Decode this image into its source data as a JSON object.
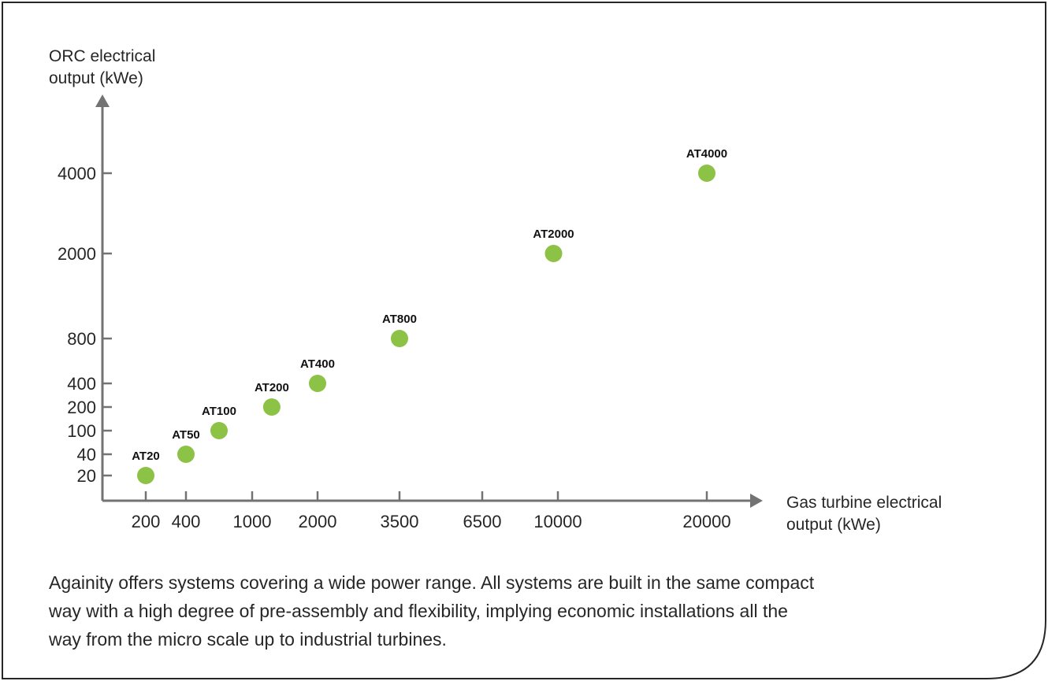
{
  "chart_data": {
    "type": "scatter",
    "ylabel_lines": [
      "ORC electrical",
      "output (kWe)"
    ],
    "xlabel_lines": [
      "Gas turbine electrical",
      "output (kWe)"
    ],
    "x_ticks": [
      200,
      400,
      1000,
      2000,
      3500,
      6500,
      10000,
      20000
    ],
    "y_ticks": [
      20,
      40,
      100,
      200,
      400,
      800,
      2000,
      4000
    ],
    "points": [
      {
        "label": "AT20",
        "x": 200,
        "y": 20
      },
      {
        "label": "AT50",
        "x": 400,
        "y": 40
      },
      {
        "label": "AT100",
        "x": 700,
        "y": 100
      },
      {
        "label": "AT200",
        "x": 1300,
        "y": 200
      },
      {
        "label": "AT400",
        "x": 2000,
        "y": 400
      },
      {
        "label": "AT800",
        "x": 3500,
        "y": 800
      },
      {
        "label": "AT2000",
        "x": 9800,
        "y": 2000
      },
      {
        "label": "AT4000",
        "x": 20000,
        "y": 4000
      }
    ],
    "marker_color": "#8cc245",
    "axis_color": "#737373",
    "grid": false,
    "scale": "non-uniform (categorical tick spacing)"
  },
  "caption_lines": [
    "Againity offers systems covering a wide power range. All systems are built in the same compact",
    "way with a high degree of pre-assembly and flexibility, implying economic installations all the",
    "way from the micro scale up to industrial turbines."
  ]
}
